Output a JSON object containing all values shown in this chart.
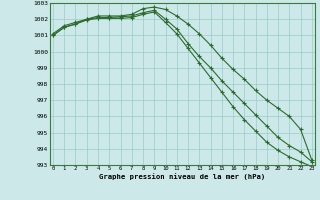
{
  "x": [
    0,
    1,
    2,
    3,
    4,
    5,
    6,
    7,
    8,
    9,
    10,
    11,
    12,
    13,
    14,
    15,
    16,
    17,
    18,
    19,
    20,
    21,
    22,
    23
  ],
  "line1": [
    1001.1,
    1001.6,
    1001.8,
    1002.0,
    1002.1,
    1002.1,
    1002.15,
    1002.2,
    1002.4,
    1002.55,
    1002.0,
    1001.4,
    1000.5,
    999.7,
    999.0,
    998.2,
    997.5,
    996.8,
    996.1,
    995.4,
    994.7,
    994.2,
    993.8,
    993.2
  ],
  "line2": [
    1001.0,
    1001.5,
    1001.7,
    1001.95,
    1002.05,
    1002.05,
    1002.05,
    1002.1,
    1002.3,
    1002.45,
    1001.8,
    1001.1,
    1000.2,
    999.3,
    998.4,
    997.5,
    996.6,
    995.8,
    995.1,
    994.4,
    993.9,
    993.5,
    993.2,
    992.9
  ],
  "line3": [
    1001.0,
    1001.5,
    1001.7,
    1002.0,
    1002.2,
    1002.2,
    1002.2,
    1002.3,
    1002.65,
    1002.75,
    1002.6,
    1002.2,
    1001.7,
    1001.1,
    1000.4,
    999.6,
    998.9,
    998.3,
    997.6,
    997.0,
    996.5,
    996.0,
    995.2,
    993.3
  ],
  "ylim": [
    993,
    1003
  ],
  "xlim": [
    0,
    23
  ],
  "yticks": [
    993,
    994,
    995,
    996,
    997,
    998,
    999,
    1000,
    1001,
    1002,
    1003
  ],
  "xticks": [
    0,
    1,
    2,
    3,
    4,
    5,
    6,
    7,
    8,
    9,
    10,
    11,
    12,
    13,
    14,
    15,
    16,
    17,
    18,
    19,
    20,
    21,
    22,
    23
  ],
  "xlabel": "Graphe pression niveau de la mer (hPa)",
  "line_color": "#2d6a2d",
  "bg_color": "#cce8e8",
  "grid_color": "#99cccc",
  "marker": "+"
}
